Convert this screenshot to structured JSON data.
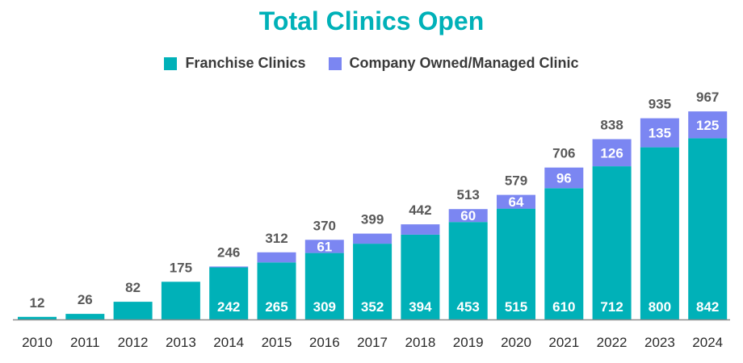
{
  "chart_data": {
    "type": "bar",
    "stacked": true,
    "title": "Total Clinics Open",
    "categories": [
      "2010",
      "2011",
      "2012",
      "2013",
      "2014",
      "2015",
      "2016",
      "2017",
      "2018",
      "2019",
      "2020",
      "2021",
      "2022",
      "2023",
      "2024"
    ],
    "series": [
      {
        "name": "Franchise Clinics",
        "color": "#00b1b8",
        "values": [
          12,
          26,
          82,
          175,
          242,
          265,
          309,
          352,
          394,
          453,
          515,
          610,
          712,
          800,
          842
        ],
        "show_labels": [
          false,
          false,
          false,
          false,
          true,
          true,
          true,
          true,
          true,
          true,
          true,
          true,
          true,
          true,
          true
        ]
      },
      {
        "name": "Company Owned/Managed Clinic",
        "color": "#7b86f2",
        "values": [
          0,
          0,
          0,
          0,
          4,
          47,
          61,
          47,
          48,
          60,
          64,
          96,
          126,
          135,
          125
        ],
        "show_labels": [
          false,
          false,
          false,
          false,
          true,
          true,
          true,
          true,
          true,
          true,
          true,
          true,
          true,
          true,
          true
        ]
      }
    ],
    "totals": [
      12,
      26,
      82,
      175,
      246,
      312,
      370,
      399,
      442,
      513,
      579,
      706,
      838,
      935,
      967
    ],
    "xlabel": "",
    "ylabel": "",
    "ylim": [
      0,
      1000
    ],
    "grid": false,
    "legend_position": "top-center",
    "axis_color": "#8c8c8c",
    "total_label_color": "#595959",
    "segment_label_color": "#ffffff"
  }
}
